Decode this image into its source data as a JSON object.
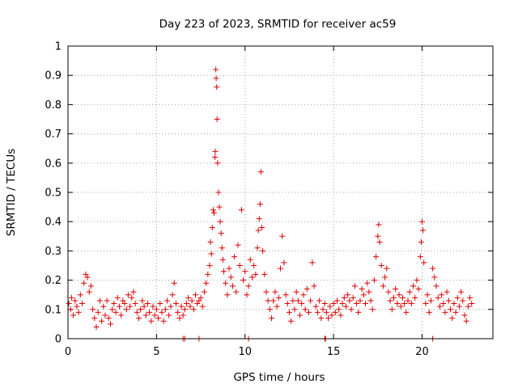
{
  "chart_data": {
    "type": "scatter",
    "title": "Day 223 of 2023, SRMTID for receiver ac59",
    "xlabel": "GPS time / hours",
    "ylabel": "SRMTID / TECUs",
    "xlim": [
      0,
      24
    ],
    "ylim": [
      0,
      1
    ],
    "xticks": [
      0,
      5,
      10,
      15,
      20
    ],
    "yticks": [
      0,
      0.1,
      0.2,
      0.3,
      0.4,
      0.5,
      0.6,
      0.7,
      0.8,
      0.9,
      1
    ],
    "xtick_labels": [
      "0",
      "5",
      "10",
      "15",
      "20"
    ],
    "ytick_labels": [
      "0",
      "0.1",
      "0.2",
      "0.3",
      "0.4",
      "0.5",
      "0.6",
      "0.7",
      "0.8",
      "0.9",
      "1"
    ],
    "grid": true,
    "marker": "+",
    "color": "#e00000",
    "series": [
      {
        "name": "SRMTID",
        "points": [
          [
            0.05,
            0.12
          ],
          [
            0.15,
            0.1
          ],
          [
            0.2,
            0.14
          ],
          [
            0.3,
            0.08
          ],
          [
            0.4,
            0.13
          ],
          [
            0.5,
            0.11
          ],
          [
            0.6,
            0.09
          ],
          [
            0.7,
            0.15
          ],
          [
            0.8,
            0.12
          ],
          [
            0.9,
            0.19
          ],
          [
            1.0,
            0.22
          ],
          [
            1.1,
            0.21
          ],
          [
            1.2,
            0.16
          ],
          [
            1.3,
            0.18
          ],
          [
            1.4,
            0.1
          ],
          [
            1.5,
            0.07
          ],
          [
            1.6,
            0.04
          ],
          [
            1.7,
            0.09
          ],
          [
            1.8,
            0.13
          ],
          [
            1.9,
            0.06
          ],
          [
            2.0,
            0.11
          ],
          [
            2.1,
            0.08
          ],
          [
            2.2,
            0.13
          ],
          [
            2.3,
            0.07
          ],
          [
            2.4,
            0.05
          ],
          [
            2.5,
            0.1
          ],
          [
            2.6,
            0.12
          ],
          [
            2.7,
            0.09
          ],
          [
            2.8,
            0.14
          ],
          [
            2.9,
            0.11
          ],
          [
            3.0,
            0.08
          ],
          [
            3.1,
            0.13
          ],
          [
            3.2,
            0.12
          ],
          [
            3.3,
            0.1
          ],
          [
            3.4,
            0.15
          ],
          [
            3.5,
            0.11
          ],
          [
            3.6,
            0.14
          ],
          [
            3.7,
            0.16
          ],
          [
            3.8,
            0.12
          ],
          [
            3.9,
            0.09
          ],
          [
            4.0,
            0.07
          ],
          [
            4.1,
            0.1
          ],
          [
            4.2,
            0.13
          ],
          [
            4.3,
            0.11
          ],
          [
            4.4,
            0.08
          ],
          [
            4.5,
            0.12
          ],
          [
            4.6,
            0.09
          ],
          [
            4.7,
            0.06
          ],
          [
            4.8,
            0.11
          ],
          [
            4.9,
            0.08
          ],
          [
            5.0,
            0.1
          ],
          [
            5.1,
            0.07
          ],
          [
            5.2,
            0.12
          ],
          [
            5.3,
            0.09
          ],
          [
            5.4,
            0.06
          ],
          [
            5.5,
            0.1
          ],
          [
            5.6,
            0.13
          ],
          [
            5.7,
            0.08
          ],
          [
            5.8,
            0.11
          ],
          [
            5.9,
            0.15
          ],
          [
            6.0,
            0.19
          ],
          [
            6.1,
            0.12
          ],
          [
            6.2,
            0.09
          ],
          [
            6.3,
            0.07
          ],
          [
            6.4,
            0.11
          ],
          [
            6.5,
            0.08
          ],
          [
            6.6,
            0.1
          ],
          [
            6.7,
            0.12
          ],
          [
            6.8,
            0.14
          ],
          [
            6.9,
            0.11
          ],
          [
            7.0,
            0.13
          ],
          [
            7.1,
            0.1
          ],
          [
            7.2,
            0.15
          ],
          [
            7.3,
            0.12
          ],
          [
            7.4,
            0.13
          ],
          [
            7.5,
            0.14
          ],
          [
            7.6,
            0.11
          ],
          [
            7.7,
            0.16
          ],
          [
            7.8,
            0.19
          ],
          [
            7.9,
            0.22
          ],
          [
            8.0,
            0.25
          ],
          [
            8.05,
            0.33
          ],
          [
            8.1,
            0.29
          ],
          [
            8.15,
            0.38
          ],
          [
            8.2,
            0.44
          ],
          [
            8.25,
            0.43
          ],
          [
            8.3,
            0.62
          ],
          [
            8.32,
            0.64
          ],
          [
            8.35,
            0.92
          ],
          [
            8.37,
            0.89
          ],
          [
            8.4,
            0.86
          ],
          [
            8.42,
            0.75
          ],
          [
            8.45,
            0.6
          ],
          [
            8.5,
            0.5
          ],
          [
            8.55,
            0.45
          ],
          [
            8.6,
            0.4
          ],
          [
            8.65,
            0.36
          ],
          [
            8.7,
            0.31
          ],
          [
            8.75,
            0.27
          ],
          [
            8.8,
            0.23
          ],
          [
            8.9,
            0.19
          ],
          [
            9.0,
            0.15
          ],
          [
            9.1,
            0.24
          ],
          [
            9.2,
            0.21
          ],
          [
            9.3,
            0.18
          ],
          [
            9.4,
            0.28
          ],
          [
            9.5,
            0.16
          ],
          [
            9.6,
            0.32
          ],
          [
            9.7,
            0.25
          ],
          [
            9.8,
            0.44
          ],
          [
            9.9,
            0.2
          ],
          [
            10.0,
            0.23
          ],
          [
            10.1,
            0.15
          ],
          [
            10.2,
            0.18
          ],
          [
            10.3,
            0.27
          ],
          [
            10.4,
            0.21
          ],
          [
            10.5,
            0.25
          ],
          [
            10.6,
            0.22
          ],
          [
            10.7,
            0.31
          ],
          [
            10.75,
            0.37
          ],
          [
            10.8,
            0.41
          ],
          [
            10.85,
            0.46
          ],
          [
            10.9,
            0.57
          ],
          [
            10.95,
            0.38
          ],
          [
            11.0,
            0.3
          ],
          [
            11.1,
            0.22
          ],
          [
            11.2,
            0.16
          ],
          [
            11.3,
            0.13
          ],
          [
            11.4,
            0.1
          ],
          [
            11.5,
            0.07
          ],
          [
            11.6,
            0.13
          ],
          [
            11.7,
            0.16
          ],
          [
            11.8,
            0.11
          ],
          [
            11.9,
            0.14
          ],
          [
            12.0,
            0.24
          ],
          [
            12.1,
            0.35
          ],
          [
            12.2,
            0.26
          ],
          [
            12.3,
            0.15
          ],
          [
            12.4,
            0.12
          ],
          [
            12.5,
            0.09
          ],
          [
            12.6,
            0.06
          ],
          [
            12.7,
            0.13
          ],
          [
            12.8,
            0.1
          ],
          [
            12.9,
            0.16
          ],
          [
            13.0,
            0.13
          ],
          [
            13.1,
            0.08
          ],
          [
            13.2,
            0.12
          ],
          [
            13.3,
            0.15
          ],
          [
            13.4,
            0.1
          ],
          [
            13.5,
            0.17
          ],
          [
            13.6,
            0.09
          ],
          [
            13.7,
            0.13
          ],
          [
            13.8,
            0.26
          ],
          [
            13.9,
            0.18
          ],
          [
            14.0,
            0.11
          ],
          [
            14.1,
            0.09
          ],
          [
            14.2,
            0.13
          ],
          [
            14.3,
            0.07
          ],
          [
            14.4,
            0.1
          ],
          [
            14.5,
            0.12
          ],
          [
            14.6,
            0.09
          ],
          [
            14.7,
            0.07
          ],
          [
            14.8,
            0.11
          ],
          [
            14.9,
            0.08
          ],
          [
            15.0,
            0.12
          ],
          [
            15.1,
            0.09
          ],
          [
            15.2,
            0.13
          ],
          [
            15.3,
            0.1
          ],
          [
            15.4,
            0.08
          ],
          [
            15.5,
            0.12
          ],
          [
            15.6,
            0.14
          ],
          [
            15.7,
            0.11
          ],
          [
            15.8,
            0.15
          ],
          [
            15.9,
            0.13
          ],
          [
            16.0,
            0.1
          ],
          [
            16.1,
            0.14
          ],
          [
            16.2,
            0.18
          ],
          [
            16.3,
            0.12
          ],
          [
            16.4,
            0.09
          ],
          [
            16.5,
            0.13
          ],
          [
            16.6,
            0.17
          ],
          [
            16.7,
            0.15
          ],
          [
            16.8,
            0.12
          ],
          [
            16.9,
            0.19
          ],
          [
            17.0,
            0.16
          ],
          [
            17.1,
            0.13
          ],
          [
            17.2,
            0.1
          ],
          [
            17.3,
            0.2
          ],
          [
            17.4,
            0.28
          ],
          [
            17.5,
            0.35
          ],
          [
            17.55,
            0.39
          ],
          [
            17.6,
            0.33
          ],
          [
            17.7,
            0.25
          ],
          [
            17.8,
            0.18
          ],
          [
            17.9,
            0.21
          ],
          [
            18.0,
            0.24
          ],
          [
            18.1,
            0.16
          ],
          [
            18.2,
            0.13
          ],
          [
            18.3,
            0.1
          ],
          [
            18.4,
            0.14
          ],
          [
            18.5,
            0.17
          ],
          [
            18.6,
            0.12
          ],
          [
            18.7,
            0.15
          ],
          [
            18.8,
            0.11
          ],
          [
            18.9,
            0.14
          ],
          [
            19.0,
            0.12
          ],
          [
            19.1,
            0.09
          ],
          [
            19.2,
            0.13
          ],
          [
            19.3,
            0.16
          ],
          [
            19.4,
            0.12
          ],
          [
            19.5,
            0.18
          ],
          [
            19.6,
            0.14
          ],
          [
            19.7,
            0.2
          ],
          [
            19.8,
            0.17
          ],
          [
            19.9,
            0.28
          ],
          [
            19.95,
            0.33
          ],
          [
            20.0,
            0.4
          ],
          [
            20.05,
            0.37
          ],
          [
            20.1,
            0.26
          ],
          [
            20.2,
            0.12
          ],
          [
            20.3,
            0.15
          ],
          [
            20.4,
            0.09
          ],
          [
            20.5,
            0.13
          ],
          [
            20.6,
            0.24
          ],
          [
            20.7,
            0.21
          ],
          [
            20.8,
            0.18
          ],
          [
            20.9,
            0.14
          ],
          [
            21.0,
            0.11
          ],
          [
            21.1,
            0.15
          ],
          [
            21.2,
            0.12
          ],
          [
            21.3,
            0.09
          ],
          [
            21.4,
            0.16
          ],
          [
            21.5,
            0.13
          ],
          [
            21.6,
            0.1
          ],
          [
            21.7,
            0.07
          ],
          [
            21.8,
            0.12
          ],
          [
            21.9,
            0.09
          ],
          [
            22.0,
            0.14
          ],
          [
            22.1,
            0.11
          ],
          [
            22.2,
            0.16
          ],
          [
            22.3,
            0.13
          ],
          [
            22.4,
            0.08
          ],
          [
            22.5,
            0.06
          ],
          [
            22.6,
            0.11
          ],
          [
            22.7,
            0.14
          ],
          [
            22.8,
            0.12
          ]
        ]
      }
    ],
    "baseline_markers_x": [
      6.5,
      6.6,
      7.4,
      10.2,
      14.5,
      14.55,
      20.6
    ]
  }
}
